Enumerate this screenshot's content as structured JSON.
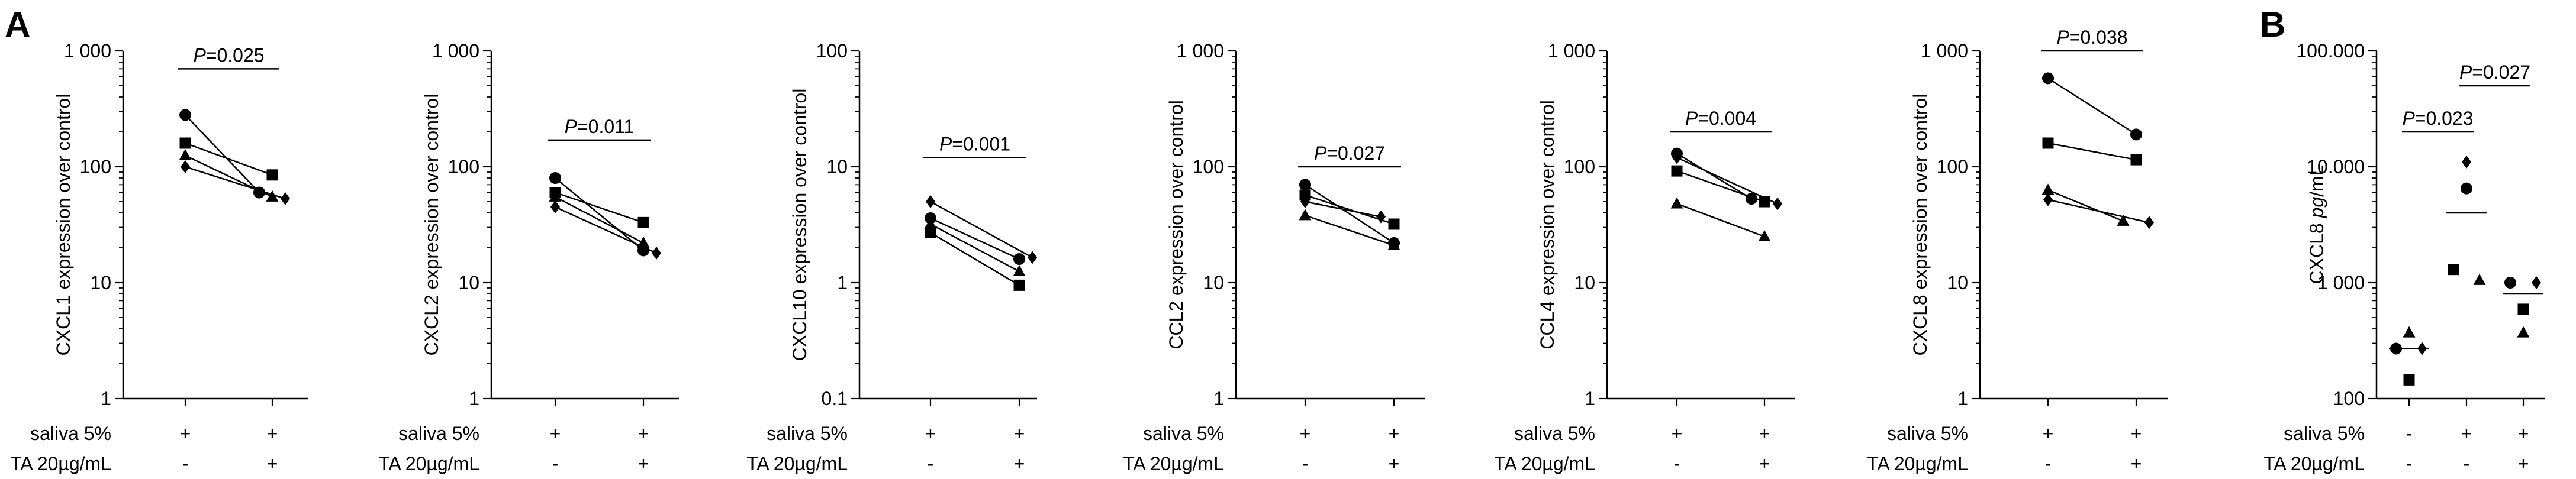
{
  "panel_labels": [
    "A",
    "B"
  ],
  "condition_rows": {
    "saliva_label": "saliva 5%",
    "ta_label": "TA 20µg/mL"
  },
  "chart_data": [
    {
      "id": "cxcl1",
      "type": "scatter",
      "panel": "A",
      "scale": "log",
      "ylabel": "CXCL1 expression over control",
      "ylim": [
        1,
        1000
      ],
      "yticks": [
        {
          "value": 1,
          "label": "1"
        },
        {
          "value": 10,
          "label": "10"
        },
        {
          "value": 100,
          "label": "100"
        },
        {
          "value": 1000,
          "label": "1 000"
        }
      ],
      "conditions": [
        {
          "saliva": "+",
          "ta": "-"
        },
        {
          "saliva": "+",
          "ta": "+"
        }
      ],
      "series": [
        {
          "name": "circle",
          "marker": "circle",
          "values": [
            280,
            60
          ],
          "offset": [
            0,
            -1
          ]
        },
        {
          "name": "square",
          "marker": "square",
          "values": [
            160,
            85
          ],
          "offset": [
            0,
            0
          ]
        },
        {
          "name": "triangle",
          "marker": "triangle",
          "values": [
            125,
            55
          ],
          "offset": [
            0,
            0
          ]
        },
        {
          "name": "diamond",
          "marker": "diamond",
          "values": [
            100,
            53
          ],
          "offset": [
            0,
            1
          ]
        }
      ],
      "annotations": [
        {
          "from": 0,
          "to": 1,
          "text": "P=0.025",
          "y": 700
        }
      ]
    },
    {
      "id": "cxcl2",
      "type": "scatter",
      "panel": "A",
      "scale": "log",
      "ylabel": "CXCL2 expression over control",
      "ylim": [
        1,
        1000
      ],
      "yticks": [
        {
          "value": 1,
          "label": "1"
        },
        {
          "value": 10,
          "label": "10"
        },
        {
          "value": 100,
          "label": "100"
        },
        {
          "value": 1000,
          "label": "1 000"
        }
      ],
      "conditions": [
        {
          "saliva": "+",
          "ta": "-"
        },
        {
          "saliva": "+",
          "ta": "+"
        }
      ],
      "series": [
        {
          "name": "circle",
          "marker": "circle",
          "values": [
            80,
            19
          ],
          "offset": [
            0,
            0
          ]
        },
        {
          "name": "square",
          "marker": "square",
          "values": [
            60,
            33
          ],
          "offset": [
            0,
            0
          ]
        },
        {
          "name": "triangle",
          "marker": "triangle",
          "values": [
            55,
            22
          ],
          "offset": [
            0,
            0
          ]
        },
        {
          "name": "diamond",
          "marker": "diamond",
          "values": [
            45,
            18
          ],
          "offset": [
            0,
            1
          ]
        }
      ],
      "annotations": [
        {
          "from": 0,
          "to": 1,
          "text": "P=0.011",
          "y": 170
        }
      ]
    },
    {
      "id": "cxcl10",
      "type": "scatter",
      "panel": "A",
      "scale": "log",
      "ylabel": "CXCL10 expression over control",
      "ylim": [
        0.1,
        100
      ],
      "yticks": [
        {
          "value": 0.1,
          "label": "0.1"
        },
        {
          "value": 1,
          "label": "1"
        },
        {
          "value": 10,
          "label": "10"
        },
        {
          "value": 100,
          "label": "100"
        }
      ],
      "conditions": [
        {
          "saliva": "+",
          "ta": "-"
        },
        {
          "saliva": "+",
          "ta": "+"
        }
      ],
      "series": [
        {
          "name": "diamond",
          "marker": "diamond",
          "values": [
            5,
            1.65
          ],
          "offset": [
            0,
            1
          ]
        },
        {
          "name": "circle",
          "marker": "circle",
          "values": [
            3.6,
            1.6
          ],
          "offset": [
            0,
            0
          ]
        },
        {
          "name": "triangle",
          "marker": "triangle",
          "values": [
            3.2,
            1.25
          ],
          "offset": [
            0,
            0
          ]
        },
        {
          "name": "square",
          "marker": "square",
          "values": [
            2.7,
            0.95
          ],
          "offset": [
            0,
            0
          ]
        }
      ],
      "annotations": [
        {
          "from": 0,
          "to": 1,
          "text": "P=0.001",
          "y": 12
        }
      ]
    },
    {
      "id": "ccl2",
      "type": "scatter",
      "panel": "A",
      "scale": "log",
      "ylabel": "CCL2 expression over control",
      "ylim": [
        1,
        1000
      ],
      "yticks": [
        {
          "value": 1,
          "label": "1"
        },
        {
          "value": 10,
          "label": "10"
        },
        {
          "value": 100,
          "label": "100"
        },
        {
          "value": 1000,
          "label": "1 000"
        }
      ],
      "conditions": [
        {
          "saliva": "+",
          "ta": "-"
        },
        {
          "saliva": "+",
          "ta": "+"
        }
      ],
      "series": [
        {
          "name": "circle",
          "marker": "circle",
          "values": [
            70,
            22
          ],
          "offset": [
            0,
            0
          ]
        },
        {
          "name": "square",
          "marker": "square",
          "values": [
            57,
            32
          ],
          "offset": [
            0,
            0
          ]
        },
        {
          "name": "diamond",
          "marker": "diamond",
          "values": [
            50,
            37
          ],
          "offset": [
            0,
            -1
          ]
        },
        {
          "name": "triangle",
          "marker": "triangle",
          "values": [
            38,
            21
          ],
          "offset": [
            0,
            0
          ]
        }
      ],
      "annotations": [
        {
          "from": 0,
          "to": 1,
          "text": "P=0.027",
          "y": 100
        }
      ]
    },
    {
      "id": "ccl4",
      "type": "scatter",
      "panel": "A",
      "scale": "log",
      "ylabel": "CCL4 expression over control",
      "ylim": [
        1,
        1000
      ],
      "yticks": [
        {
          "value": 1,
          "label": "1"
        },
        {
          "value": 10,
          "label": "10"
        },
        {
          "value": 100,
          "label": "100"
        },
        {
          "value": 1000,
          "label": "1 000"
        }
      ],
      "conditions": [
        {
          "saliva": "+",
          "ta": "-"
        },
        {
          "saliva": "+",
          "ta": "+"
        }
      ],
      "series": [
        {
          "name": "circle",
          "marker": "circle",
          "values": [
            130,
            53
          ],
          "offset": [
            0,
            -1
          ]
        },
        {
          "name": "diamond",
          "marker": "diamond",
          "values": [
            120,
            48
          ],
          "offset": [
            0,
            1
          ]
        },
        {
          "name": "square",
          "marker": "square",
          "values": [
            92,
            50
          ],
          "offset": [
            0,
            0
          ]
        },
        {
          "name": "triangle",
          "marker": "triangle",
          "values": [
            48,
            25
          ],
          "offset": [
            0,
            0
          ]
        }
      ],
      "annotations": [
        {
          "from": 0,
          "to": 1,
          "text": "P=0.004",
          "y": 200
        }
      ]
    },
    {
      "id": "cxcl8",
      "type": "scatter",
      "panel": "A",
      "scale": "log",
      "ylabel": "CXCL8 expression over control",
      "ylim": [
        1,
        1000
      ],
      "yticks": [
        {
          "value": 1,
          "label": "1"
        },
        {
          "value": 10,
          "label": "10"
        },
        {
          "value": 100,
          "label": "100"
        },
        {
          "value": 1000,
          "label": "1 000"
        }
      ],
      "conditions": [
        {
          "saliva": "+",
          "ta": "-"
        },
        {
          "saliva": "+",
          "ta": "+"
        }
      ],
      "series": [
        {
          "name": "circle",
          "marker": "circle",
          "values": [
            580,
            190
          ],
          "offset": [
            0,
            0
          ]
        },
        {
          "name": "square",
          "marker": "square",
          "values": [
            160,
            115
          ],
          "offset": [
            0,
            0
          ]
        },
        {
          "name": "triangle",
          "marker": "triangle",
          "values": [
            63,
            34
          ],
          "offset": [
            0,
            -1
          ]
        },
        {
          "name": "diamond",
          "marker": "diamond",
          "values": [
            52,
            33
          ],
          "offset": [
            0,
            1
          ]
        }
      ],
      "annotations": [
        {
          "from": 0,
          "to": 1,
          "text": "P=0.038",
          "y": 1000
        }
      ]
    },
    {
      "id": "cxcl8_pg",
      "type": "scatter",
      "panel": "B",
      "scale": "log",
      "ylabel": "CXCL8 pg/mL",
      "ylim": [
        100,
        100000
      ],
      "yticks": [
        {
          "value": 100,
          "label": "100"
        },
        {
          "value": 1000,
          "label": "1 000"
        },
        {
          "value": 10000,
          "label": "10.000"
        },
        {
          "value": 100000,
          "label": "100.000"
        }
      ],
      "conditions": [
        {
          "saliva": "-",
          "ta": "-"
        },
        {
          "saliva": "+",
          "ta": "-"
        },
        {
          "saliva": "+",
          "ta": "+"
        }
      ],
      "groups": [
        {
          "median": 270,
          "points": [
            {
              "marker": "triangle",
              "value": 370,
              "offset": 0
            },
            {
              "marker": "circle",
              "value": 270,
              "offset": -1
            },
            {
              "marker": "diamond",
              "value": 270,
              "offset": 1
            },
            {
              "marker": "square",
              "value": 145,
              "offset": 0
            }
          ]
        },
        {
          "median": 4000,
          "points": [
            {
              "marker": "diamond",
              "value": 11000,
              "offset": 0
            },
            {
              "marker": "circle",
              "value": 6500,
              "offset": 0
            },
            {
              "marker": "square",
              "value": 1300,
              "offset": -1
            },
            {
              "marker": "triangle",
              "value": 1050,
              "offset": 1
            }
          ]
        },
        {
          "median": 800,
          "points": [
            {
              "marker": "circle",
              "value": 1000,
              "offset": -1
            },
            {
              "marker": "diamond",
              "value": 1000,
              "offset": 1
            },
            {
              "marker": "square",
              "value": 590,
              "offset": 0
            },
            {
              "marker": "triangle",
              "value": 370,
              "offset": 0
            }
          ]
        }
      ],
      "annotations": [
        {
          "from": 0,
          "to": 1,
          "text": "P=0.023",
          "y": 20000
        },
        {
          "from": 1,
          "to": 2,
          "text": "P=0.027",
          "y": 50000
        }
      ]
    }
  ]
}
